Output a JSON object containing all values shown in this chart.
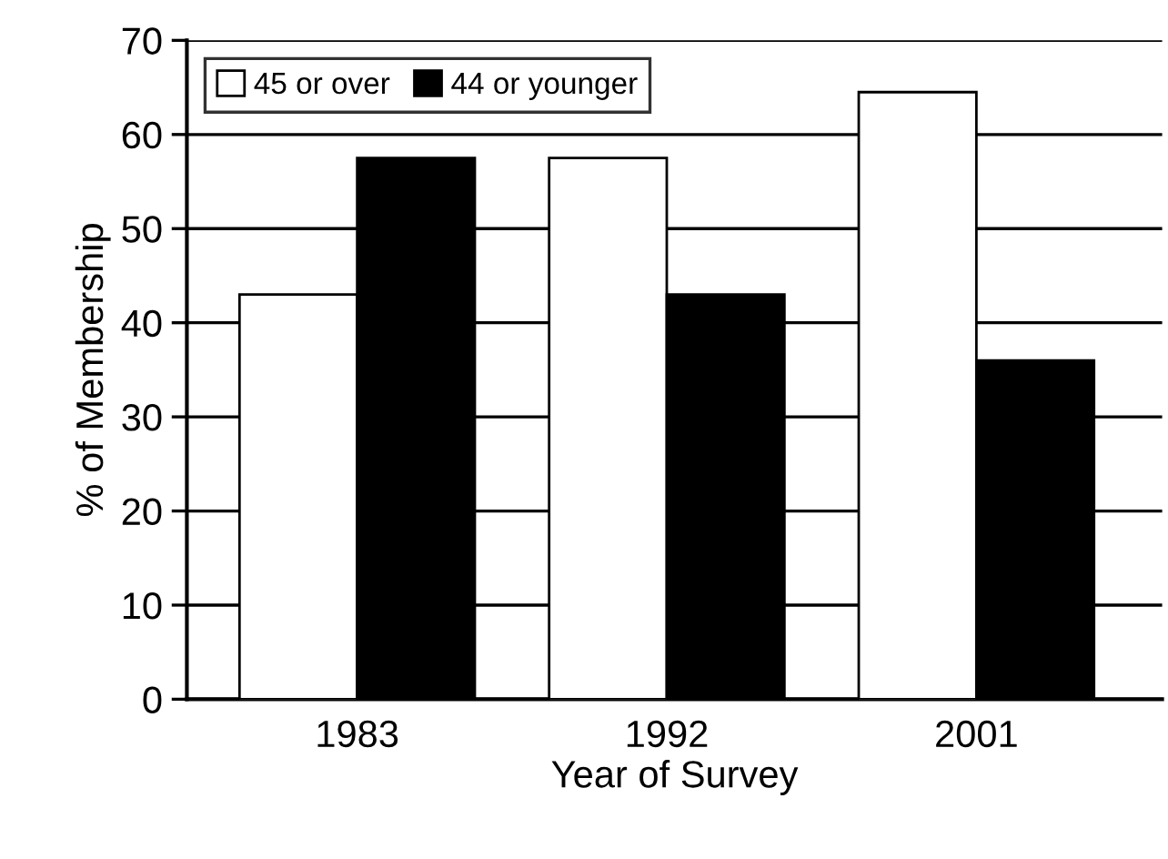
{
  "chart_data": {
    "type": "bar",
    "xlabel": "Year of Survey",
    "ylabel": "% of Membership",
    "categories": [
      "1983",
      "1992",
      "2001"
    ],
    "series": [
      {
        "name": "45 or over",
        "color": "#ffffff",
        "values": [
          43,
          57.5,
          64.5
        ]
      },
      {
        "name": "44 or younger",
        "color": "#000000",
        "values": [
          57.5,
          43,
          36
        ]
      }
    ],
    "ylim": [
      0,
      70
    ],
    "yticks": [
      0,
      10,
      20,
      30,
      40,
      50,
      60,
      70
    ],
    "grid": "y",
    "legend": "top left"
  }
}
